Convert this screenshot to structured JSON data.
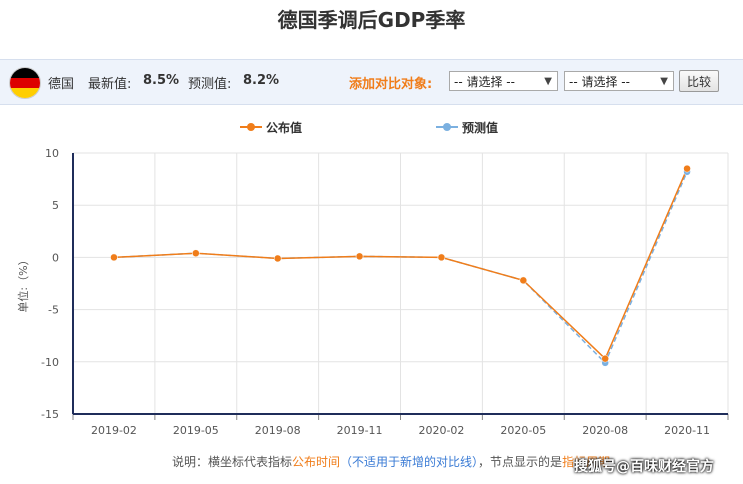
{
  "page": {
    "title": "德国季调后GDP季率"
  },
  "infobar": {
    "country": "德国",
    "latest_label": "最新值:",
    "latest_value": "8.5%",
    "forecast_label": "预测值:",
    "forecast_value": "8.2%",
    "compare_label": "添加对比对象:",
    "select1": "-- 请选择 --",
    "select2": "-- 请选择 --",
    "compare_button": "比较",
    "flag_colors": [
      "#000000",
      "#dd0000",
      "#ffce00"
    ]
  },
  "note": {
    "prefix": "说明：横坐标代表指标",
    "highlight": "公布时间",
    "paren": "（不适用于新增的对比线）",
    "suffix": "，节点显示的是",
    "tail": "指标周期"
  },
  "watermark": "搜狐号@百味财经官方",
  "chart_data": {
    "type": "line",
    "categories": [
      "2019-02",
      "2019-05",
      "2019-08",
      "2019-11",
      "2020-02",
      "2020-05",
      "2020-08",
      "2020-11"
    ],
    "x": [
      0,
      1,
      2,
      3,
      4,
      5,
      6,
      7
    ],
    "series": [
      {
        "name": "公布值",
        "color": "#f07d1a",
        "values": [
          0.0,
          0.4,
          -0.1,
          0.1,
          0.0,
          -2.2,
          -9.7,
          8.5
        ]
      },
      {
        "name": "预测值",
        "color": "#7bb0e0",
        "values": [
          0.0,
          0.4,
          -0.1,
          0.1,
          0.0,
          -2.2,
          -10.1,
          8.2
        ]
      }
    ],
    "xlim": [
      -0.5,
      7.5
    ],
    "ylim": [
      -15,
      10
    ],
    "yticks": [
      10,
      5,
      0,
      -5,
      -10,
      -15
    ],
    "ylabel": "单位:（%）",
    "grid": true,
    "legend_position": "top-center"
  }
}
